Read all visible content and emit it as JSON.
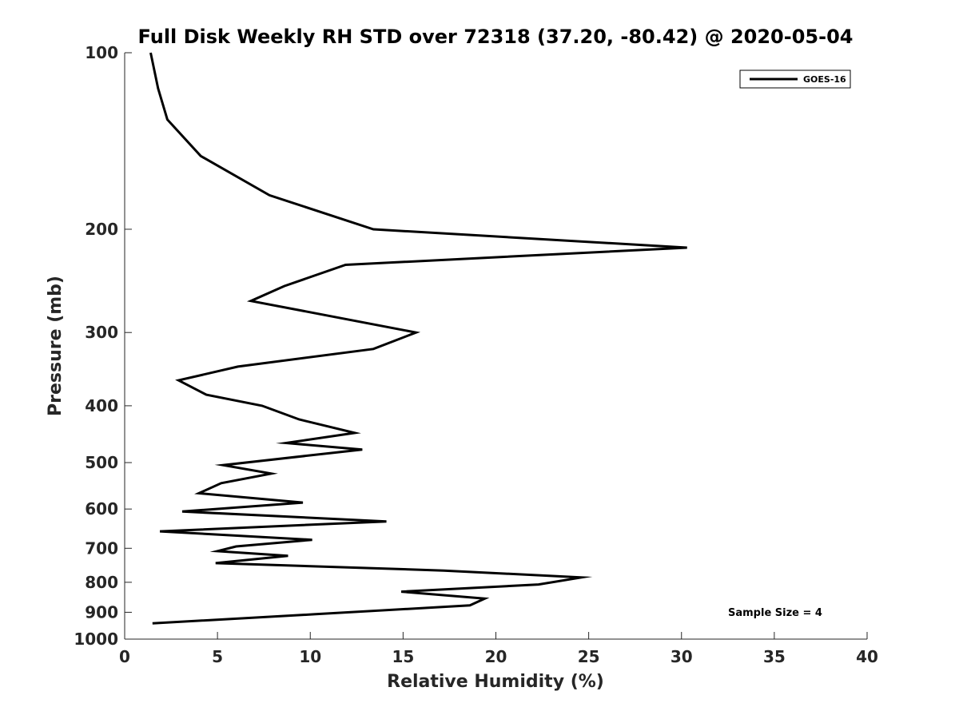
{
  "chart_data": {
    "type": "line",
    "title": "Full Disk Weekly RH STD over 72318 (37.20, -80.42) @ 2020-05-04",
    "xlabel": "Relative Humidity (%)",
    "ylabel": "Pressure (mb)",
    "xlim": [
      0,
      40
    ],
    "ylim": [
      100,
      1000
    ],
    "y_scale": "log",
    "y_reversed": true,
    "x_ticks": [
      "0",
      "5",
      "10",
      "15",
      "20",
      "25",
      "30",
      "35",
      "40"
    ],
    "y_ticks": [
      "100",
      "200",
      "300",
      "400",
      "500",
      "600",
      "700",
      "800",
      "900",
      "1000"
    ],
    "grid": false,
    "legend_position": "top-right",
    "series": [
      {
        "name": "GOES-16",
        "color": "#000000",
        "points": [
          [
            1.4,
            100
          ],
          [
            1.8,
            115
          ],
          [
            2.3,
            130
          ],
          [
            4.1,
            150
          ],
          [
            7.8,
            175
          ],
          [
            13.4,
            200
          ],
          [
            30.3,
            215
          ],
          [
            11.9,
            230
          ],
          [
            8.6,
            250
          ],
          [
            6.8,
            265
          ],
          [
            15.7,
            300
          ],
          [
            13.4,
            320
          ],
          [
            6.1,
            343
          ],
          [
            2.9,
            362
          ],
          [
            4.4,
            383
          ],
          [
            7.4,
            400
          ],
          [
            9.4,
            422
          ],
          [
            12.4,
            445
          ],
          [
            8.7,
            463
          ],
          [
            12.8,
            475
          ],
          [
            5.3,
            505
          ],
          [
            7.9,
            522
          ],
          [
            5.2,
            542
          ],
          [
            4.0,
            564
          ],
          [
            9.6,
            585
          ],
          [
            3.1,
            606
          ],
          [
            14.1,
            630
          ],
          [
            1.9,
            655
          ],
          [
            10.1,
            677
          ],
          [
            6.0,
            695
          ],
          [
            5.0,
            708
          ],
          [
            8.8,
            721
          ],
          [
            4.9,
            742
          ],
          [
            17.2,
            764
          ],
          [
            24.6,
            785
          ],
          [
            22.3,
            807
          ],
          [
            14.9,
            830
          ],
          [
            19.4,
            853
          ],
          [
            18.6,
            876
          ],
          [
            10.2,
            907
          ],
          [
            1.5,
            940
          ]
        ]
      }
    ],
    "annotations": [
      "Sample Size = 4"
    ]
  }
}
